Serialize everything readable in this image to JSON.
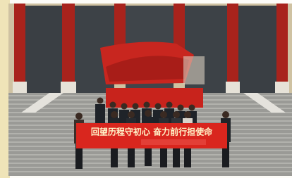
{
  "banner": {
    "text": "回望历程守初心 奋力前行担使命"
  }
}
